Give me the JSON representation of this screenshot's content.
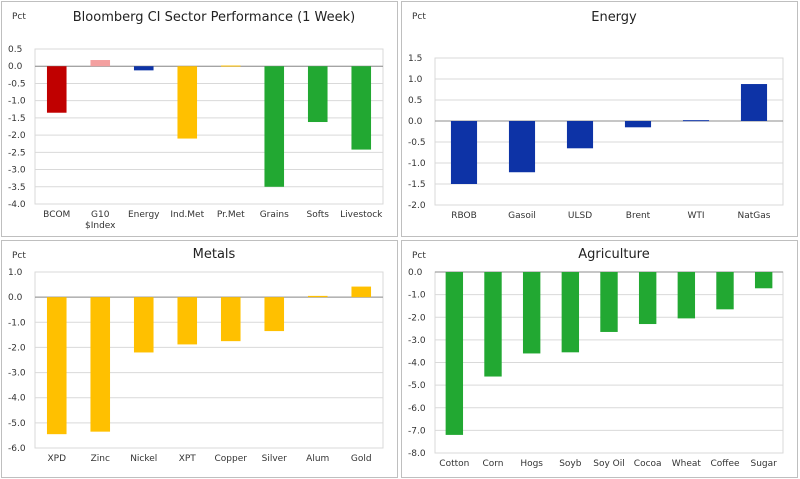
{
  "chart_data": [
    {
      "type": "bar",
      "title": "Bloomberg CI Sector Performance (1 Week)",
      "unit_label": "Pct",
      "ylim": [
        -4.0,
        0.5
      ],
      "yticks": [
        "0.5",
        "0.0",
        "-0.5",
        "-1.0",
        "-1.5",
        "-2.0",
        "-2.5",
        "-3.0",
        "-3.5",
        "-4.0"
      ],
      "grid": true,
      "categories": [
        [
          "BCOM"
        ],
        [
          "G10",
          "$Index"
        ],
        [
          "Energy"
        ],
        [
          "Ind.Met"
        ],
        [
          "Pr.Met"
        ],
        [
          "Grains"
        ],
        [
          "Softs"
        ],
        [
          "Livestock"
        ]
      ],
      "values": [
        -1.35,
        0.18,
        -0.12,
        -2.1,
        0.02,
        -3.5,
        -1.62,
        -2.42
      ],
      "colors": [
        "#c00000",
        "#f4a0a0",
        "#0d33a6",
        "#ffc000",
        "#ffc000",
        "#22a832",
        "#22a832",
        "#22a832"
      ]
    },
    {
      "type": "bar",
      "title": "Energy",
      "unit_label": "Pct",
      "ylim": [
        -2.0,
        1.5
      ],
      "yticks": [
        "1.5",
        "1.0",
        "0.5",
        "0.0",
        "-0.5",
        "-1.0",
        "-1.5",
        "-2.0"
      ],
      "grid": true,
      "categories": [
        [
          "RBOB"
        ],
        [
          "Gasoil"
        ],
        [
          "ULSD"
        ],
        [
          "Brent"
        ],
        [
          "WTI"
        ],
        [
          "NatGas"
        ]
      ],
      "values": [
        -1.5,
        -1.22,
        -0.65,
        -0.15,
        0.02,
        0.88
      ],
      "colors": [
        "#0d33a6",
        "#0d33a6",
        "#0d33a6",
        "#0d33a6",
        "#0d33a6",
        "#0d33a6"
      ]
    },
    {
      "type": "bar",
      "title": "Metals",
      "unit_label": "Pct",
      "ylim": [
        -6.0,
        1.0
      ],
      "yticks": [
        "1.0",
        "0.0",
        "-1.0",
        "-2.0",
        "-3.0",
        "-4.0",
        "-5.0",
        "-6.0"
      ],
      "grid": true,
      "categories": [
        [
          "XPD"
        ],
        [
          "Zinc"
        ],
        [
          "Nickel"
        ],
        [
          "XPT"
        ],
        [
          "Copper"
        ],
        [
          "Silver"
        ],
        [
          "Alum"
        ],
        [
          "Gold"
        ]
      ],
      "values": [
        -5.45,
        -5.35,
        -2.2,
        -1.88,
        -1.75,
        -1.35,
        0.05,
        0.42
      ],
      "colors": [
        "#ffc000",
        "#ffc000",
        "#ffc000",
        "#ffc000",
        "#ffc000",
        "#ffc000",
        "#ffc000",
        "#ffc000"
      ]
    },
    {
      "type": "bar",
      "title": "Agriculture",
      "unit_label": "Pct",
      "ylim": [
        -8.0,
        0.0
      ],
      "yticks": [
        "0.0",
        "-1.0",
        "-2.0",
        "-3.0",
        "-4.0",
        "-5.0",
        "-6.0",
        "-7.0",
        "-8.0"
      ],
      "grid": true,
      "categories": [
        [
          "Cotton"
        ],
        [
          "Corn"
        ],
        [
          "Hogs"
        ],
        [
          "Soyb"
        ],
        [
          "Soy Oil"
        ],
        [
          "Cocoa"
        ],
        [
          "Wheat"
        ],
        [
          "Coffee"
        ],
        [
          "Sugar"
        ]
      ],
      "values": [
        -7.2,
        -4.62,
        -3.6,
        -3.55,
        -2.65,
        -2.3,
        -2.05,
        -1.65,
        -0.72
      ],
      "colors": [
        "#22a832",
        "#22a832",
        "#22a832",
        "#22a832",
        "#22a832",
        "#22a832",
        "#22a832",
        "#22a832",
        "#22a832"
      ]
    }
  ]
}
